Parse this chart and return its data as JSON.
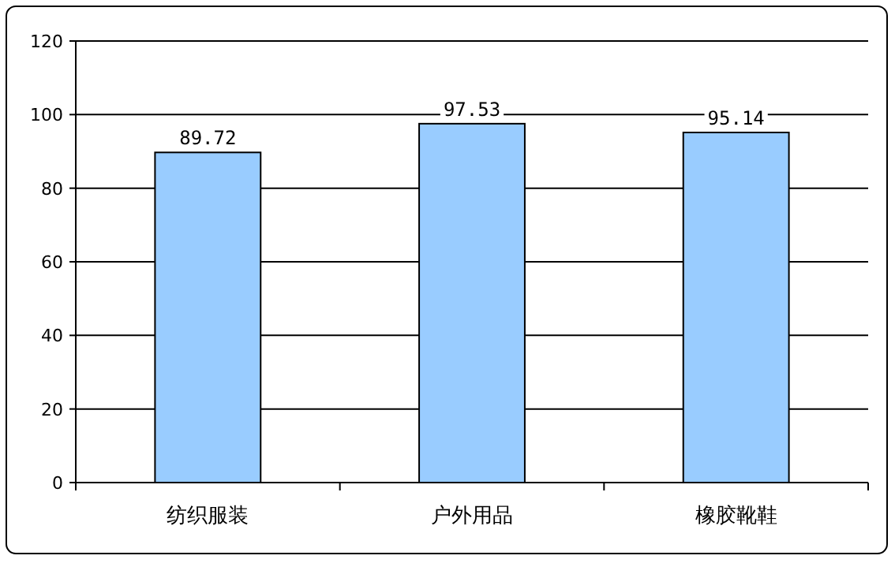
{
  "chart_data": {
    "type": "bar",
    "categories": [
      "纺织服装",
      "户外用品",
      "橡胶靴鞋"
    ],
    "values": [
      89.72,
      97.53,
      95.14
    ],
    "color": "#99ccff",
    "ylim": [
      0,
      120
    ],
    "yticks": [
      0,
      20,
      40,
      60,
      80,
      100,
      120
    ],
    "grid": "y",
    "data_labels": true
  }
}
